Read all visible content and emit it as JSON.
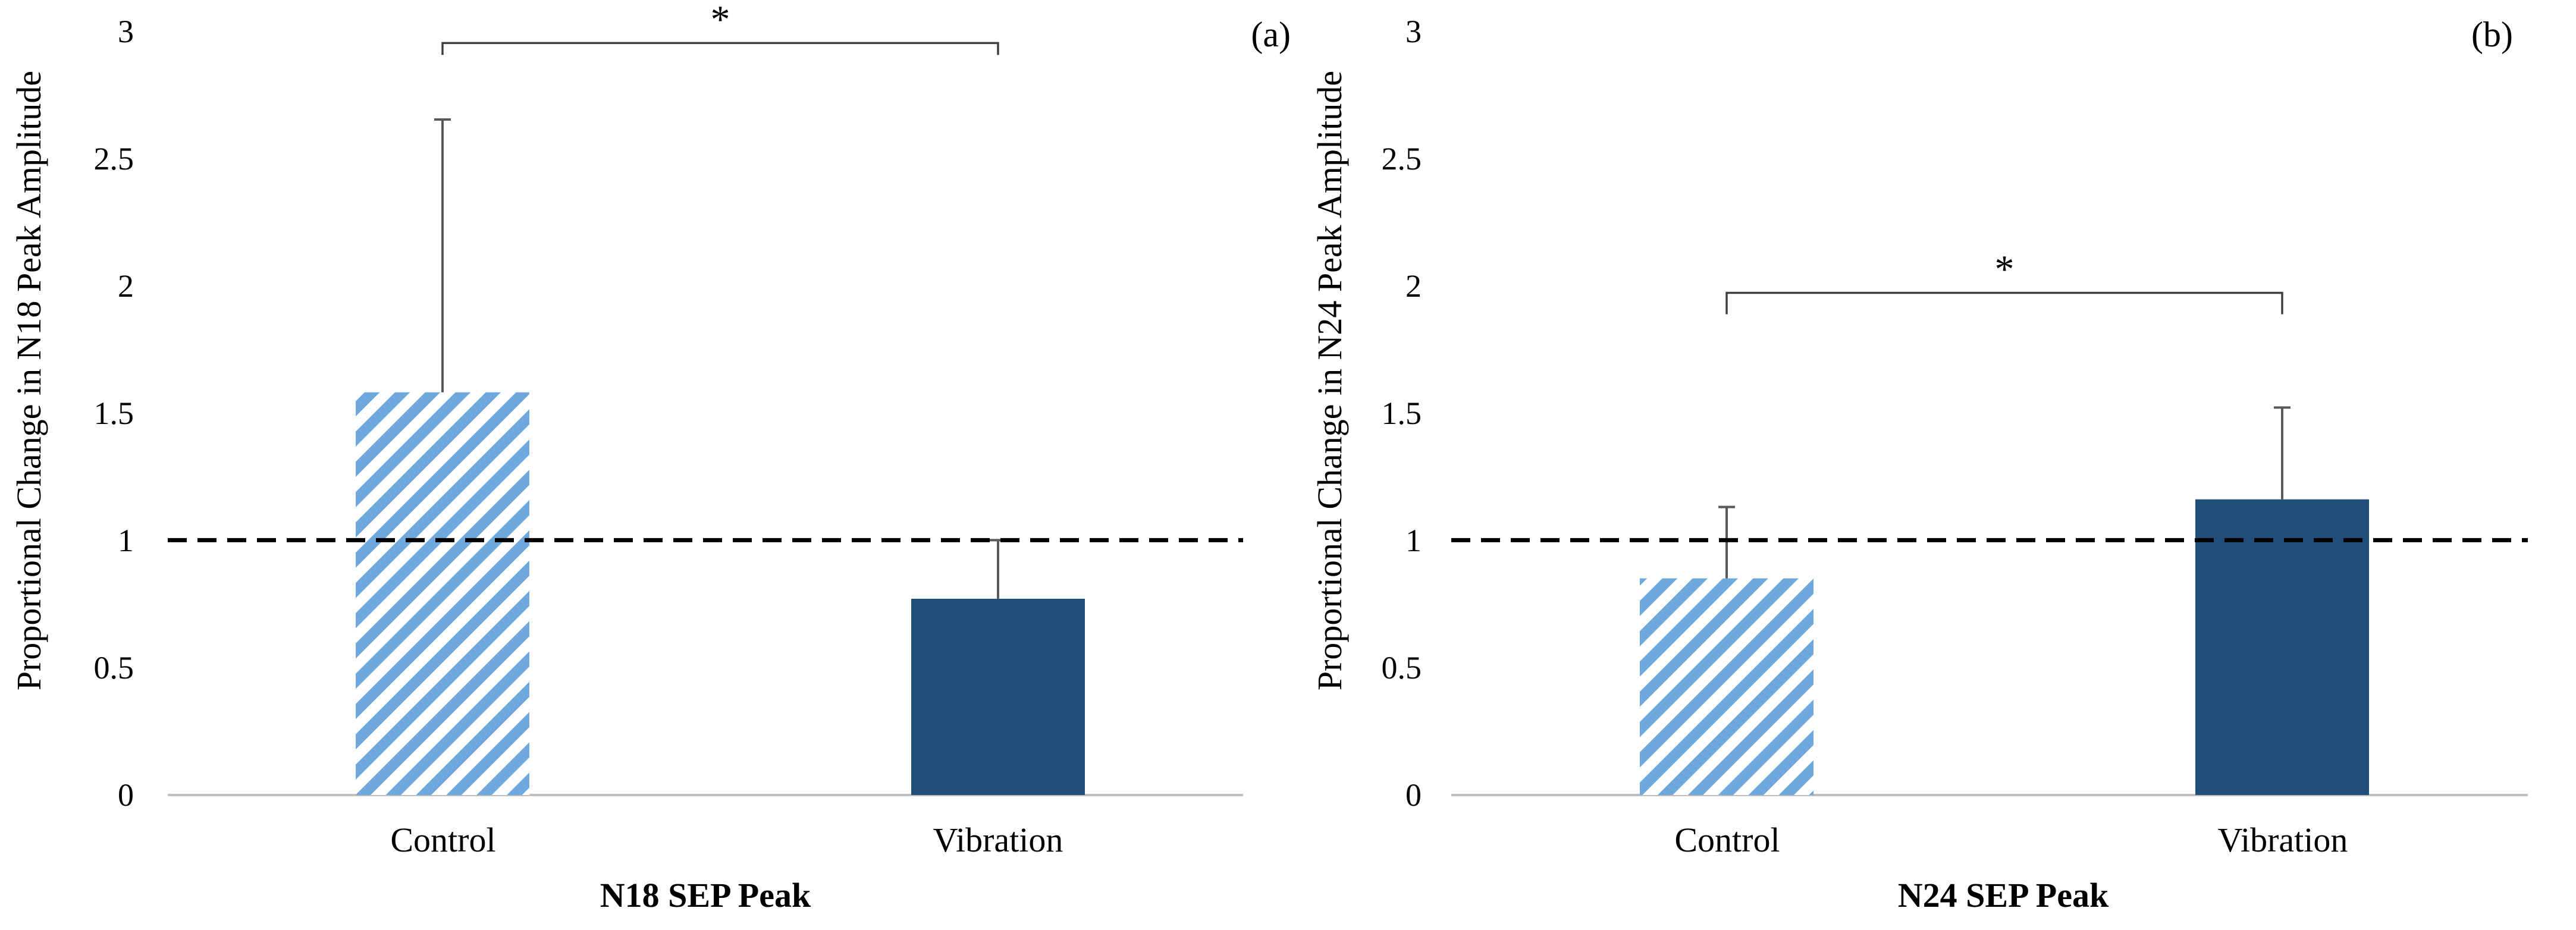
{
  "chart_data": [
    {
      "type": "bar",
      "panel_label": "(a)",
      "title": "",
      "xlabel": "N18 SEP Peak",
      "ylabel": "Proportional Change in N18 Peak Amplitude",
      "ylim": [
        0,
        3
      ],
      "yticks": [
        "0",
        "0.5",
        "1",
        "1.5",
        "2",
        "2.5",
        "3"
      ],
      "categories": [
        "Control",
        "Vibration"
      ],
      "values": [
        1.58,
        0.77
      ],
      "error_upper": [
        1.07,
        0.23
      ],
      "bar_styles": [
        "hatched-light-blue",
        "solid-dark-blue"
      ],
      "reference_line": 1.0,
      "significance": {
        "label": "*",
        "between": [
          "Control",
          "Vibration"
        ],
        "bracket_y": 2.95
      },
      "grid": false
    },
    {
      "type": "bar",
      "panel_label": "(b)",
      "title": "",
      "xlabel": "N24 SEP Peak",
      "ylabel": "Proportional Change in N24 Peak Amplitude",
      "ylim": [
        0,
        3
      ],
      "yticks": [
        "0",
        "0.5",
        "1",
        "1.5",
        "2",
        "2.5",
        "3"
      ],
      "categories": [
        "Control",
        "Vibration"
      ],
      "values": [
        0.85,
        1.16
      ],
      "error_upper": [
        0.28,
        0.36
      ],
      "bar_styles": [
        "hatched-light-blue",
        "solid-dark-blue"
      ],
      "reference_line": 1.0,
      "significance": {
        "label": "*",
        "between": [
          "Control",
          "Vibration"
        ],
        "bracket_y": 1.97
      },
      "grid": false
    }
  ],
  "colors": {
    "hatch_light": "#6fa8dc",
    "solid_bar": "#1f4e79",
    "axis": "#bfbfbf",
    "reference_line": "#000000",
    "error_bar": "#595959",
    "bracket": "#404040"
  }
}
